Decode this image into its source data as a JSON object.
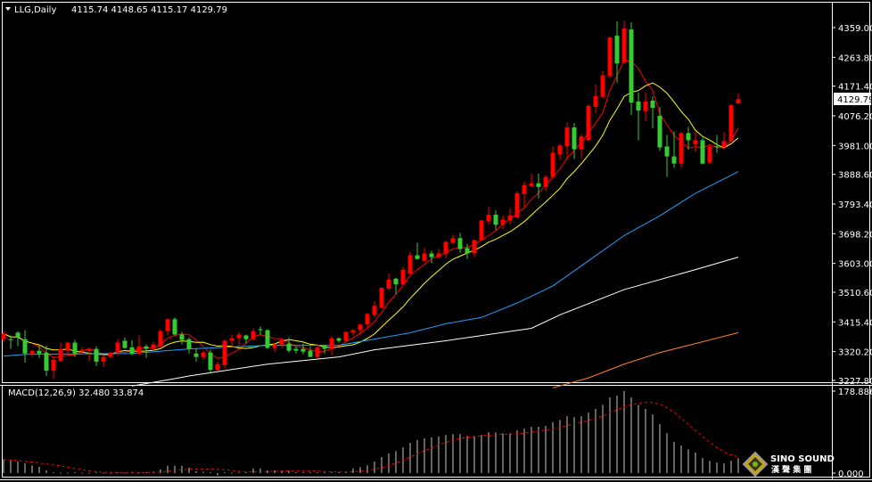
{
  "header": {
    "symbol_label": "LLG,Daily",
    "ohlc_label": "4115.74 4148.65 4115.17 4129.79",
    "menu_icon": "triangle-down-icon"
  },
  "colors": {
    "background": "#000000",
    "up_candle": "#ff0000",
    "down_candle": "#33cc33",
    "ma_red": "#ff0000",
    "ma_yellow": "#ffff00",
    "ma_blue": "#1ea0ff",
    "ma_white": "#ffffff",
    "ma_orange": "#ff7f27",
    "macd_hist": "#c8c8c8",
    "macd_signal": "#ff0000"
  },
  "logo": {
    "name": "SINO SOUND",
    "chinese": "漢 聲 集 團"
  },
  "chart_data": [
    {
      "type": "candlestick",
      "title": "LLG,Daily",
      "current_price": "4129.79",
      "y_ticks": [
        "4359.00",
        "4263.80",
        "4171.40",
        "4076.20",
        "3981.00",
        "3888.60",
        "3793.40",
        "3698.20",
        "3603.00",
        "3510.60",
        "3415.40",
        "3320.20",
        "3227.80"
      ],
      "ylim": [
        3227.8,
        4359.0
      ],
      "candles_ohlc": [
        [
          3360,
          3389,
          3352,
          3378
        ],
        [
          3360,
          3372,
          3329,
          3357
        ],
        [
          3381,
          3386,
          3337,
          3366
        ],
        [
          3360,
          3389,
          3285,
          3314
        ],
        [
          3314,
          3326,
          3303,
          3323
        ],
        [
          3323,
          3343,
          3300,
          3314
        ],
        [
          3317,
          3340,
          3242,
          3259
        ],
        [
          3259,
          3305,
          3233,
          3294
        ],
        [
          3291,
          3349,
          3288,
          3329
        ],
        [
          3323,
          3352,
          3314,
          3349
        ],
        [
          3349,
          3358,
          3303,
          3314
        ],
        [
          3320,
          3334,
          3314,
          3326
        ],
        [
          3323,
          3332,
          3288,
          3329
        ],
        [
          3329,
          3337,
          3274,
          3288
        ],
        [
          3288,
          3308,
          3271,
          3303
        ],
        [
          3303,
          3320,
          3300,
          3317
        ],
        [
          3317,
          3360,
          3308,
          3349
        ],
        [
          3355,
          3366,
          3329,
          3332
        ],
        [
          3334,
          3357,
          3308,
          3314
        ],
        [
          3314,
          3372,
          3308,
          3337
        ],
        [
          3337,
          3343,
          3300,
          3329
        ],
        [
          3329,
          3352,
          3323,
          3343
        ],
        [
          3337,
          3392,
          3334,
          3386
        ],
        [
          3386,
          3427,
          3372,
          3424
        ],
        [
          3424,
          3430,
          3372,
          3375
        ],
        [
          3375,
          3384,
          3343,
          3358
        ],
        [
          3360,
          3366,
          3314,
          3329
        ],
        [
          3314,
          3332,
          3288,
          3303
        ],
        [
          3303,
          3323,
          3294,
          3317
        ],
        [
          3317,
          3326,
          3253,
          3262
        ],
        [
          3262,
          3288,
          3259,
          3280
        ],
        [
          3277,
          3360,
          3268,
          3355
        ],
        [
          3355,
          3375,
          3337,
          3363
        ],
        [
          3363,
          3383,
          3337,
          3375
        ],
        [
          3372,
          3375,
          3346,
          3360
        ],
        [
          3360,
          3395,
          3357,
          3386
        ],
        [
          3392,
          3401,
          3372,
          3389
        ],
        [
          3389,
          3392,
          3329,
          3332
        ],
        [
          3332,
          3349,
          3320,
          3343
        ],
        [
          3343,
          3360,
          3332,
          3358
        ],
        [
          3346,
          3366,
          3317,
          3323
        ],
        [
          3329,
          3337,
          3314,
          3323
        ],
        [
          3329,
          3346,
          3311,
          3320
        ],
        [
          3323,
          3337,
          3303,
          3303
        ],
        [
          3303,
          3343,
          3303,
          3334
        ],
        [
          3340,
          3343,
          3314,
          3329
        ],
        [
          3329,
          3369,
          3308,
          3363
        ],
        [
          3363,
          3366,
          3349,
          3355
        ],
        [
          3355,
          3386,
          3352,
          3383
        ],
        [
          3381,
          3392,
          3372,
          3389
        ],
        [
          3389,
          3410,
          3372,
          3407
        ],
        [
          3407,
          3444,
          3395,
          3441
        ],
        [
          3438,
          3482,
          3430,
          3467
        ],
        [
          3461,
          3525,
          3458,
          3525
        ],
        [
          3522,
          3571,
          3516,
          3551
        ],
        [
          3554,
          3557,
          3504,
          3536
        ],
        [
          3536,
          3591,
          3533,
          3583
        ],
        [
          3571,
          3640,
          3568,
          3629
        ],
        [
          3629,
          3669,
          3617,
          3617
        ],
        [
          3611,
          3652,
          3611,
          3635
        ],
        [
          3635,
          3643,
          3603,
          3623
        ],
        [
          3623,
          3649,
          3620,
          3635
        ],
        [
          3635,
          3675,
          3620,
          3672
        ],
        [
          3669,
          3695,
          3666,
          3684
        ],
        [
          3684,
          3701,
          3637,
          3649
        ],
        [
          3652,
          3666,
          3617,
          3635
        ],
        [
          3635,
          3678,
          3623,
          3678
        ],
        [
          3678,
          3741,
          3678,
          3741
        ],
        [
          3738,
          3785,
          3727,
          3759
        ],
        [
          3759,
          3773,
          3710,
          3727
        ],
        [
          3727,
          3756,
          3712,
          3744
        ],
        [
          3741,
          3779,
          3727,
          3756
        ],
        [
          3750,
          3834,
          3747,
          3828
        ],
        [
          3825,
          3865,
          3785,
          3854
        ],
        [
          3851,
          3891,
          3848,
          3860
        ],
        [
          3860,
          3891,
          3811,
          3848
        ],
        [
          3848,
          3886,
          3834,
          3880
        ],
        [
          3880,
          3978,
          3877,
          3958
        ],
        [
          3952,
          3987,
          3935,
          3981
        ],
        [
          3978,
          4056,
          3935,
          4039
        ],
        [
          4039,
          4053,
          3938,
          3969
        ],
        [
          3969,
          4018,
          3940,
          4010
        ],
        [
          3998,
          4113,
          3998,
          4108
        ],
        [
          4105,
          4177,
          4085,
          4140
        ],
        [
          4137,
          4220,
          4131,
          4206
        ],
        [
          4203,
          4330,
          4197,
          4327
        ],
        [
          4333,
          4379,
          4183,
          4244
        ],
        [
          4246,
          4382,
          4246,
          4356
        ],
        [
          4353,
          4376,
          4079,
          4119
        ],
        [
          4122,
          4151,
          3998,
          4093
        ],
        [
          4091,
          4151,
          4059,
          4122
        ],
        [
          4125,
          4139,
          4036,
          4102
        ],
        [
          4076,
          4105,
          3964,
          3975
        ],
        [
          3978,
          4015,
          3880,
          3946
        ],
        [
          3946,
          4027,
          3909,
          3923
        ],
        [
          3923,
          4024,
          3909,
          4021
        ],
        [
          4021,
          4041,
          3967,
          3998
        ],
        [
          3984,
          4027,
          3961,
          3998
        ],
        [
          3998,
          4007,
          3920,
          3923
        ],
        [
          3926,
          3981,
          3923,
          3978
        ],
        [
          3978,
          4015,
          3958,
          3975
        ],
        [
          3975,
          4024,
          3969,
          3995
        ],
        [
          3995,
          4114,
          3993,
          4110
        ],
        [
          4115.74,
          4148.65,
          4115.17,
          4129.79
        ]
      ],
      "moving_averages": [
        {
          "color_key": "ma_red",
          "period": 5
        },
        {
          "color_key": "ma_yellow",
          "period": 10
        },
        {
          "color_key": "ma_blue",
          "points": [
            [
              0,
              3305.6
            ],
            [
              3,
              3311.4
            ],
            [
              18,
              3314.3
            ],
            [
              26,
              3328.7
            ],
            [
              37,
              3340.3
            ],
            [
              47,
              3340.3
            ],
            [
              52,
              3360.4
            ],
            [
              57,
              3380.7
            ],
            [
              62,
              3409.5
            ],
            [
              67,
              3429.8
            ],
            [
              72,
              3475.9
            ],
            [
              77,
              3530.8
            ],
            [
              82,
              3611.5
            ],
            [
              87,
              3692.3
            ],
            [
              92,
              3755.8
            ],
            [
              97,
              3828.0
            ],
            [
              103,
              3897.2
            ]
          ]
        },
        {
          "color_key": "ma_white",
          "points": [
            [
              18,
              3210
            ],
            [
              24,
              3233.5
            ],
            [
              26,
              3242
            ],
            [
              37,
              3280
            ],
            [
              47,
              3303
            ],
            [
              52,
              3326
            ],
            [
              62,
              3355
            ],
            [
              74,
              3395
            ],
            [
              78,
              3438
            ],
            [
              87,
              3519
            ],
            [
              97,
              3583
            ],
            [
              103,
              3623
            ]
          ]
        },
        {
          "color_key": "ma_orange",
          "points": [
            [
              77,
              3204
            ],
            [
              82,
              3236
            ],
            [
              87,
              3280
            ],
            [
              92,
              3317
            ],
            [
              97,
              3346
            ],
            [
              103,
              3381
            ]
          ]
        }
      ]
    },
    {
      "type": "bar",
      "title": "MACD(12,26,9) 32.480 33.874",
      "y_ticks": [
        "178.886",
        "0.000"
      ],
      "ylim": [
        0,
        178.886
      ],
      "macd_histogram": [
        30,
        27,
        25,
        21,
        17,
        13.5,
        6,
        2,
        1,
        1,
        2,
        1,
        1,
        2,
        1,
        1,
        2,
        1,
        2,
        1,
        2,
        3,
        8,
        16,
        16,
        16,
        12,
        4,
        3,
        2,
        -5,
        2,
        1,
        2,
        2,
        10,
        10,
        6,
        6,
        4,
        5,
        2,
        2,
        2,
        2,
        2,
        2,
        2,
        2,
        10,
        13,
        17,
        25,
        35,
        43,
        48,
        56,
        66,
        72,
        76,
        78,
        80,
        83,
        85,
        85,
        81,
        80,
        83,
        89,
        89,
        87,
        87,
        93,
        97,
        101,
        101,
        103,
        111,
        116,
        124,
        122,
        124,
        132,
        140,
        149,
        165,
        169,
        178.886,
        165,
        149,
        140,
        128,
        107,
        87,
        68,
        60,
        52,
        45,
        33,
        27,
        23,
        21,
        27,
        32.48
      ],
      "signal": {
        "period": 9,
        "last_value": 33.874
      }
    }
  ]
}
